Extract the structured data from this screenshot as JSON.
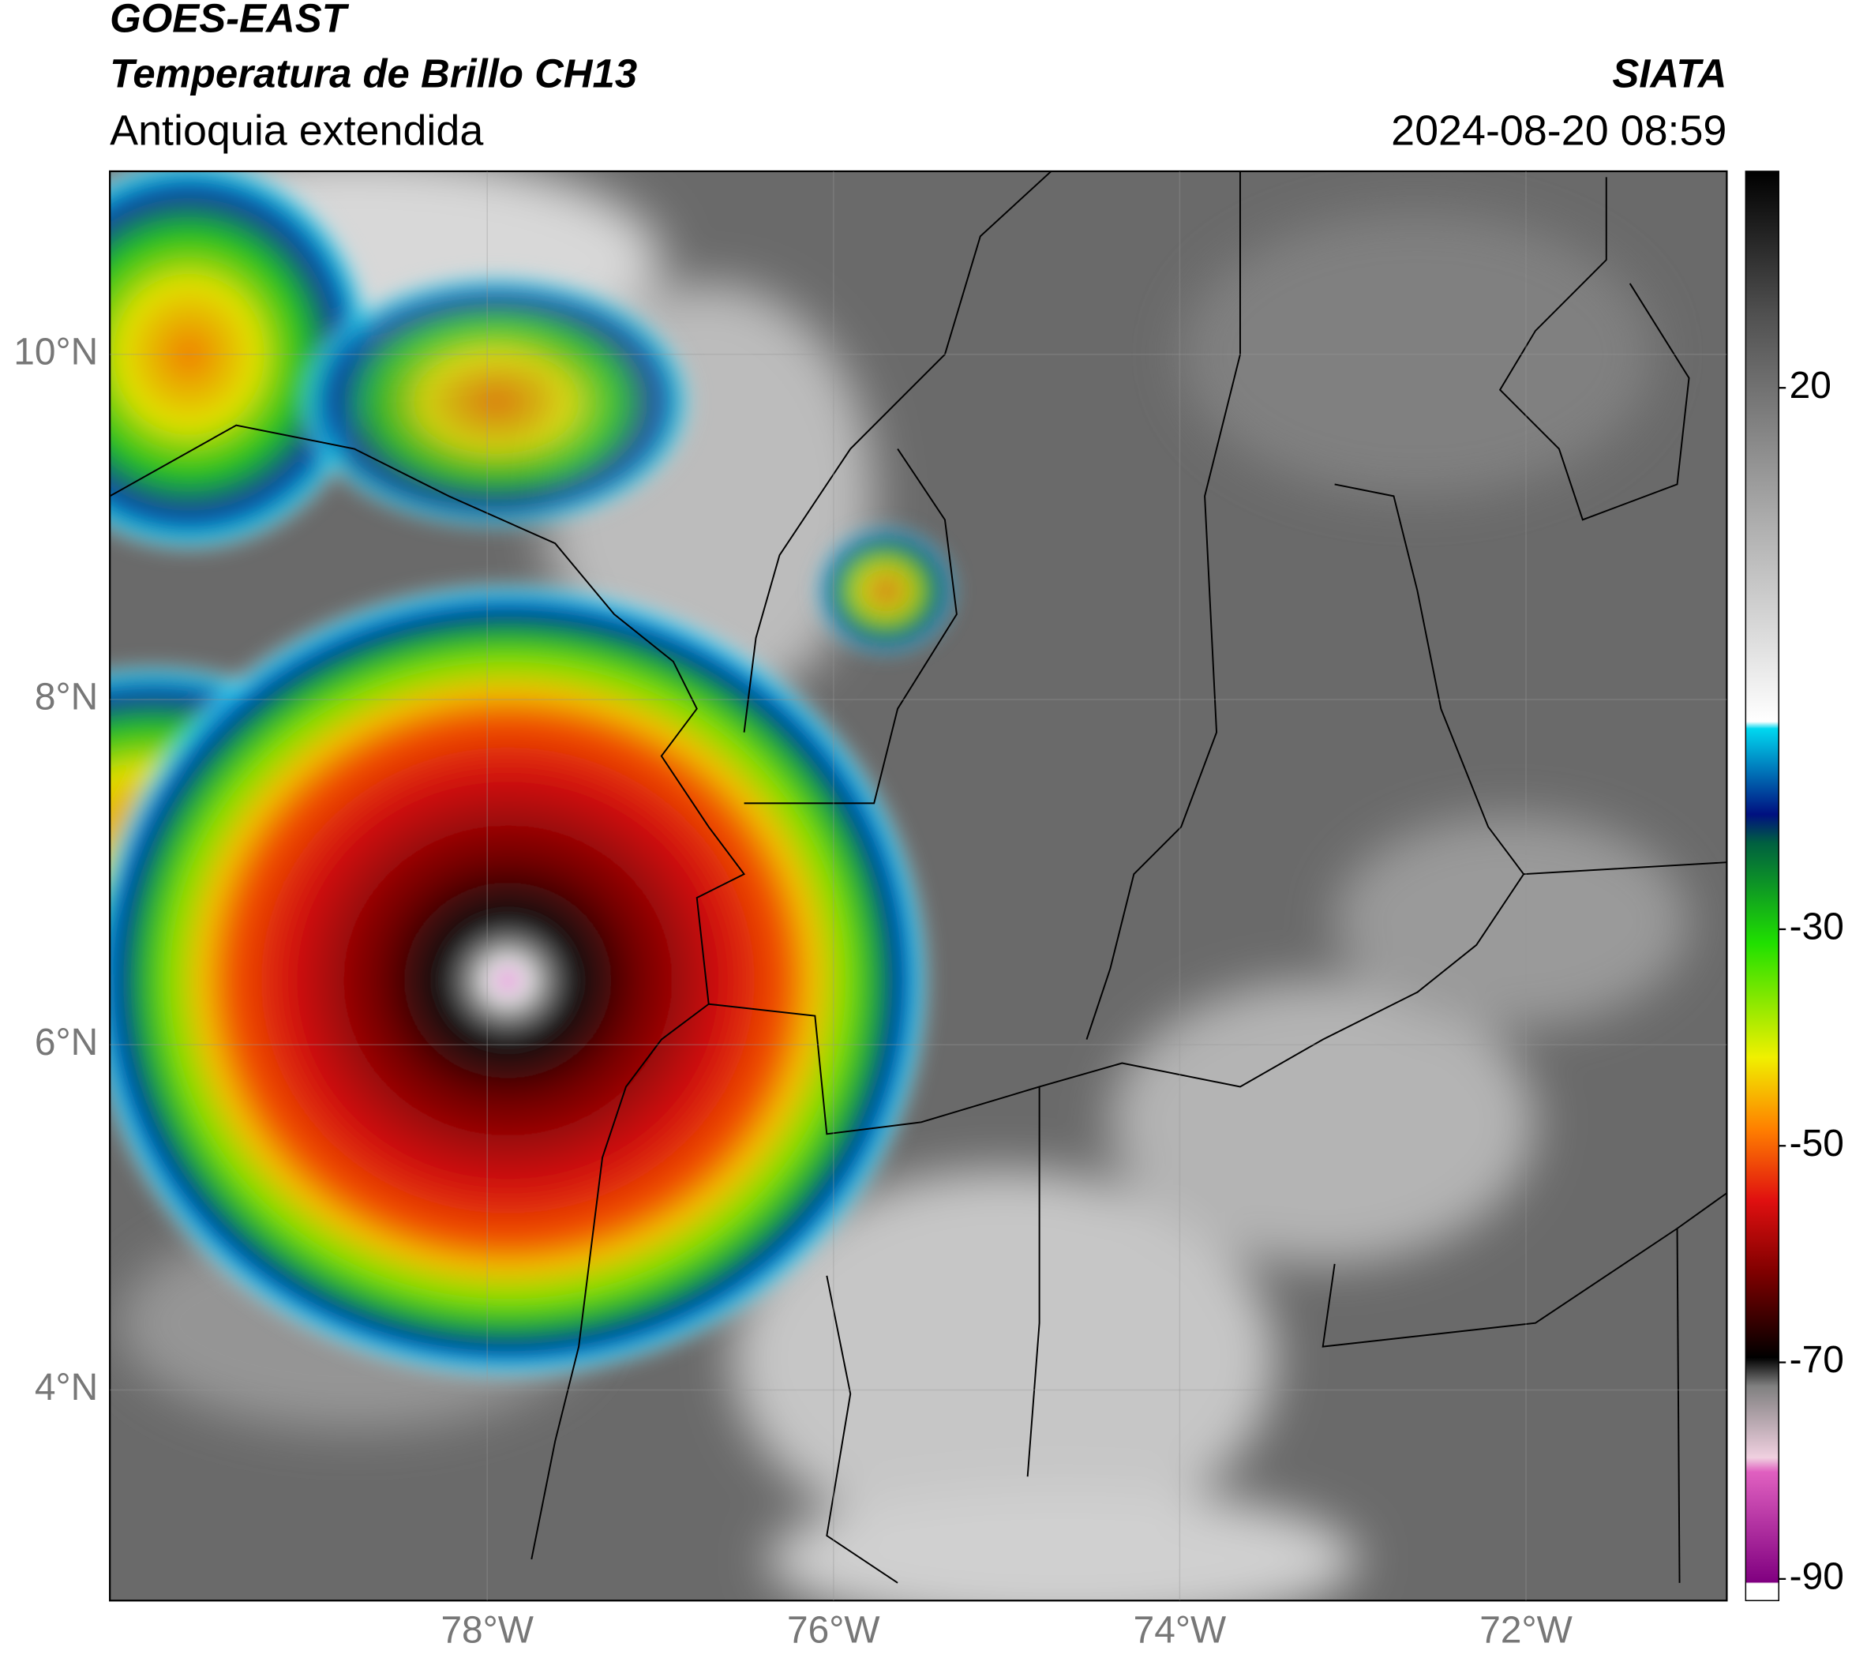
{
  "header": {
    "title": "GOES-EAST",
    "subtitle": "Temperatura de Brillo CH13",
    "region": "Antioquia extendida",
    "source": "SIATA",
    "datetime": "2024-08-20 08:59"
  },
  "map": {
    "type": "map",
    "xlim": [
      -80.18,
      -70.84
    ],
    "ylim": [
      2.78,
      11.06
    ],
    "grid": true,
    "xticks": [
      {
        "value": -78,
        "label": "78°W"
      },
      {
        "value": -76,
        "label": "76°W"
      },
      {
        "value": -74,
        "label": "74°W"
      },
      {
        "value": -72,
        "label": "72°W"
      }
    ],
    "yticks": [
      {
        "value": 4,
        "label": "4°N"
      },
      {
        "value": 6,
        "label": "6°N"
      },
      {
        "value": 8,
        "label": "8°N"
      },
      {
        "value": 10,
        "label": "10°N"
      }
    ],
    "colorbar": {
      "ylim": [
        -92,
        40
      ],
      "yticks": [
        20,
        -30,
        -50,
        -70,
        -90
      ]
    }
  }
}
